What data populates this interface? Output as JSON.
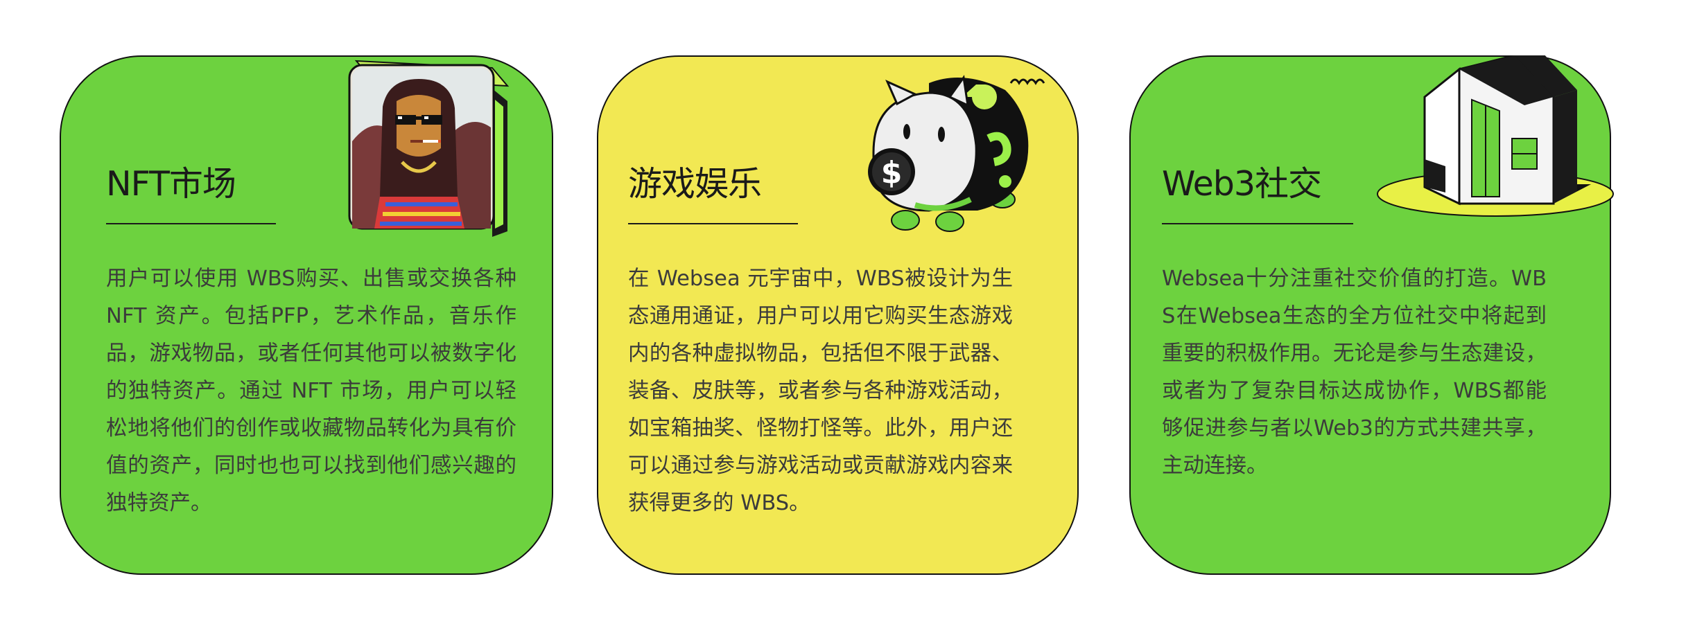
{
  "cards": [
    {
      "title": "NFT市场",
      "body": "用户可以使用 WBS购买、出售或交换各种 NFT 资产。包括PFP，艺术作品，音乐作品，游戏物品，或者任何其他可以被数字化的独特资产。通过 NFT 市场，用户可以轻松地将他们的创作或收藏物品转化为具有价值的资产，同时也也可以找到他们感兴趣的独特资产。",
      "color": "#6dd23f",
      "icon": "pixel-art-portrait-icon"
    },
    {
      "title": "游戏娱乐",
      "body": "在 Websea 元宇宙中，WBS被设计为生态通用通证，用户可以用它购买生态游戏内的各种虚拟物品，包括但不限于武器、装备、皮肤等，或者参与各种游戏活动，如宝箱抽奖、怪物打怪等。此外，用户还可以通过参与游戏活动或贡献游戏内容来获得更多的 WBS。",
      "color": "#f2e853",
      "icon": "piggy-bank-icon"
    },
    {
      "title": "Web3社交",
      "body": "Websea十分注重社交价值的打造。WBS在Websea生态的全方位社交中将起到重要的积极作用。无论是参与生态建设，或者为了复杂目标达成协作，WBS都能够促进参与者以Web3的方式共建共享，主动连接。",
      "color": "#6dd23f",
      "icon": "house-icon"
    }
  ]
}
